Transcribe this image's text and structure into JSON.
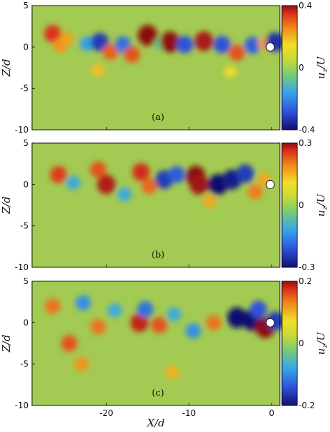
{
  "chart_data": [
    {
      "type": "heatmap",
      "panel_label": "(a)",
      "xlim": [
        -29,
        1
      ],
      "ylim": [
        -10,
        5
      ],
      "xlabel": "",
      "ylabel": "Z/d",
      "yticks": [
        "5",
        "0",
        "-5",
        "-10"
      ],
      "colorbar": {
        "label": "u_z/U",
        "min": -0.4,
        "max": 0.4,
        "ticks": [
          "0.4",
          "0",
          "-0.4"
        ]
      },
      "marker": {
        "shape": "circle",
        "x": 0,
        "z": 0
      },
      "blobs": [
        {
          "x": -26.5,
          "z": 1.6,
          "value": 0.28
        },
        {
          "x": -25.6,
          "z": 0.2,
          "value": 0.16
        },
        {
          "x": -24.8,
          "z": 1.0,
          "value": 0.14
        },
        {
          "x": -22.3,
          "z": 0.4,
          "value": -0.18
        },
        {
          "x": -20.8,
          "z": 0.6,
          "value": -0.32
        },
        {
          "x": -19.5,
          "z": -0.6,
          "value": 0.22
        },
        {
          "x": -18.0,
          "z": 0.3,
          "value": -0.24
        },
        {
          "x": -16.9,
          "z": -0.9,
          "value": 0.24
        },
        {
          "x": -15.0,
          "z": 1.4,
          "value": 0.4
        },
        {
          "x": -13.5,
          "z": 0.3,
          "value": -0.1
        },
        {
          "x": -12.3,
          "z": 0.6,
          "value": 0.4
        },
        {
          "x": -10.5,
          "z": 0.3,
          "value": -0.28
        },
        {
          "x": -8.2,
          "z": 0.7,
          "value": 0.36
        },
        {
          "x": -6.0,
          "z": 0.3,
          "value": -0.28
        },
        {
          "x": -4.2,
          "z": -0.7,
          "value": 0.24
        },
        {
          "x": -2.3,
          "z": 0.2,
          "value": -0.26
        },
        {
          "x": -0.8,
          "z": 0.4,
          "value": 0.14
        },
        {
          "x": 0.4,
          "z": 0.6,
          "value": -0.34
        },
        {
          "x": -21.0,
          "z": -2.8,
          "value": 0.1
        },
        {
          "x": -5.0,
          "z": -3.0,
          "value": 0.06
        }
      ]
    },
    {
      "type": "heatmap",
      "panel_label": "(b)",
      "xlim": [
        -29,
        1
      ],
      "ylim": [
        -10,
        5
      ],
      "xlabel": "",
      "ylabel": "Z/d",
      "yticks": [
        "5",
        "0",
        "-5",
        "-10"
      ],
      "colorbar": {
        "label": "u_z/U",
        "min": -0.3,
        "max": 0.3,
        "ticks": [
          "0.3",
          "0",
          "-0.3"
        ]
      },
      "marker": {
        "shape": "circle",
        "x": 0,
        "z": 0
      },
      "blobs": [
        {
          "x": -25.8,
          "z": 1.2,
          "value": 0.2
        },
        {
          "x": -24.0,
          "z": 0.2,
          "value": -0.12
        },
        {
          "x": -21.0,
          "z": 1.8,
          "value": 0.18
        },
        {
          "x": -20.0,
          "z": 0.0,
          "value": 0.26
        },
        {
          "x": -17.8,
          "z": -1.2,
          "value": -0.12
        },
        {
          "x": -15.8,
          "z": 1.5,
          "value": 0.22
        },
        {
          "x": -14.8,
          "z": -0.2,
          "value": 0.16
        },
        {
          "x": -13.0,
          "z": 0.6,
          "value": -0.24
        },
        {
          "x": -11.5,
          "z": 1.2,
          "value": -0.2
        },
        {
          "x": -9.2,
          "z": 1.0,
          "value": 0.3
        },
        {
          "x": -8.8,
          "z": 0.0,
          "value": 0.28
        },
        {
          "x": -6.5,
          "z": 0.0,
          "value": -0.3
        },
        {
          "x": -4.8,
          "z": 0.6,
          "value": -0.28
        },
        {
          "x": -3.2,
          "z": 1.3,
          "value": -0.24
        },
        {
          "x": -2.0,
          "z": -0.9,
          "value": 0.14
        },
        {
          "x": -0.9,
          "z": 0.6,
          "value": 0.1
        },
        {
          "x": -7.5,
          "z": -2.0,
          "value": 0.1
        }
      ]
    },
    {
      "type": "heatmap",
      "panel_label": "(c)",
      "xlim": [
        -29,
        1
      ],
      "ylim": [
        -10,
        5
      ],
      "xlabel": "X/d",
      "ylabel": "Z/d",
      "xticks": [
        "-20",
        "-10",
        "0"
      ],
      "yticks": [
        "5",
        "0",
        "-5",
        "-10"
      ],
      "colorbar": {
        "label": "u_z/U",
        "min": -0.2,
        "max": 0.2,
        "ticks": [
          "0.2",
          "0",
          "-0.2"
        ]
      },
      "marker": {
        "shape": "circle",
        "x": 0,
        "z": 0
      },
      "blobs": [
        {
          "x": -26.5,
          "z": 2.0,
          "value": 0.1
        },
        {
          "x": -24.5,
          "z": -2.5,
          "value": 0.12
        },
        {
          "x": -22.8,
          "z": 2.4,
          "value": -0.1
        },
        {
          "x": -21.0,
          "z": -0.5,
          "value": 0.1
        },
        {
          "x": -19.0,
          "z": 1.5,
          "value": -0.08
        },
        {
          "x": -16.0,
          "z": 0.0,
          "value": 0.16
        },
        {
          "x": -15.3,
          "z": 1.6,
          "value": -0.12
        },
        {
          "x": -13.6,
          "z": -0.3,
          "value": 0.12
        },
        {
          "x": -11.8,
          "z": 1.0,
          "value": -0.08
        },
        {
          "x": -9.5,
          "z": -1.0,
          "value": -0.1
        },
        {
          "x": -7.0,
          "z": 0.0,
          "value": 0.1
        },
        {
          "x": -4.2,
          "z": 0.6,
          "value": -0.2
        },
        {
          "x": -2.4,
          "z": 0.3,
          "value": -0.2
        },
        {
          "x": -1.6,
          "z": 1.6,
          "value": -0.14
        },
        {
          "x": -0.8,
          "z": -0.6,
          "value": 0.2
        },
        {
          "x": 0.5,
          "z": 0.2,
          "value": -0.16
        },
        {
          "x": -23.0,
          "z": -5.0,
          "value": 0.08
        },
        {
          "x": -12.0,
          "z": -6.0,
          "value": 0.06
        }
      ]
    }
  ],
  "colormap": {
    "stops": [
      "#10106e",
      "#2c4fd8",
      "#37a6e8",
      "#92cf4a",
      "#efe029",
      "#f28a1b",
      "#d92d1b",
      "#8e0f0f"
    ],
    "background": "#a3ca52",
    "marker_fill": "#ffffff"
  }
}
